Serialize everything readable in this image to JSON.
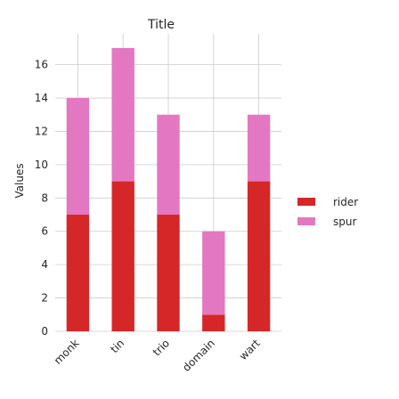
{
  "chart_data": {
    "type": "bar",
    "stacked": true,
    "title": "Title",
    "xlabel": "",
    "ylabel": "Values",
    "categories": [
      "monk",
      "tin",
      "trio",
      "domain",
      "wart"
    ],
    "series": [
      {
        "name": "rider",
        "values": [
          7,
          9,
          7,
          1,
          9
        ],
        "color": "#d62728"
      },
      {
        "name": "spur",
        "values": [
          7,
          8,
          6,
          5,
          4
        ],
        "color": "#e377c2"
      }
    ],
    "ylim": [
      0,
      17.85
    ],
    "yticks": [
      "0",
      "2",
      "4",
      "6",
      "8",
      "10",
      "12",
      "14",
      "16"
    ],
    "grid": true,
    "legend_position": "right"
  }
}
